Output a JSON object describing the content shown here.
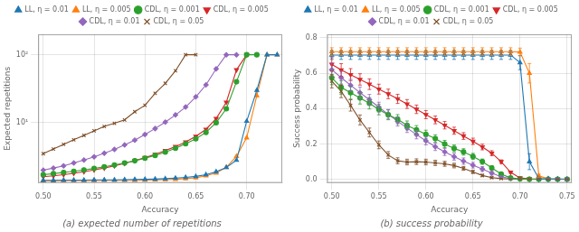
{
  "chart_data": [
    {
      "type": "line",
      "title": "(a) expected number of repetitions",
      "xlabel": "Accuracy",
      "ylabel": "Expected repetitions",
      "x": [
        0.5,
        0.51,
        0.52,
        0.53,
        0.54,
        0.55,
        0.56,
        0.57,
        0.58,
        0.59,
        0.6,
        0.61,
        0.62,
        0.63,
        0.64,
        0.65,
        0.66,
        0.67,
        0.68,
        0.69,
        0.7,
        0.71,
        0.72,
        0.73
      ],
      "series": [
        {
          "name": "LL, η = 0.01",
          "color": "#1f77b4",
          "marker": "triangle",
          "values": [
            1.42,
            1.42,
            1.43,
            1.43,
            1.43,
            1.44,
            1.44,
            1.44,
            1.45,
            1.46,
            1.47,
            1.48,
            1.5,
            1.53,
            1.57,
            1.62,
            1.72,
            1.9,
            2.2,
            2.8,
            10.5,
            30.0,
            100.0,
            100.0
          ]
        },
        {
          "name": "LL, η = 0.005",
          "color": "#ff7f0e",
          "marker": "triangle",
          "values": [
            1.4,
            1.4,
            1.41,
            1.41,
            1.41,
            1.41,
            1.42,
            1.42,
            1.42,
            1.42,
            1.43,
            1.44,
            1.45,
            1.47,
            1.5,
            1.55,
            1.65,
            1.82,
            2.2,
            3.2,
            6.0,
            25.0,
            100.0,
            100.0
          ]
        },
        {
          "name": "CDL, η = 0.001",
          "color": "#2ca02c",
          "marker": "circle",
          "values": [
            1.72,
            1.78,
            1.85,
            1.93,
            2.02,
            2.12,
            2.24,
            2.38,
            2.55,
            2.75,
            3.0,
            3.3,
            3.7,
            4.2,
            4.9,
            5.8,
            7.2,
            10.0,
            16.0,
            40.0,
            100.0,
            100.0,
            null,
            null
          ]
        },
        {
          "name": "CDL, η = 0.005",
          "color": "#d62728",
          "marker": "triangle_down",
          "values": [
            1.6,
            1.65,
            1.72,
            1.8,
            1.9,
            2.02,
            2.15,
            2.32,
            2.52,
            2.76,
            3.06,
            3.42,
            3.88,
            4.45,
            5.2,
            6.3,
            8.0,
            11.5,
            20.0,
            60.0,
            100.0,
            null,
            null,
            null
          ]
        },
        {
          "name": "CDL, η = 0.01",
          "color": "#9467bd",
          "marker": "diamond",
          "values": [
            2.0,
            2.15,
            2.32,
            2.55,
            2.82,
            3.15,
            3.55,
            4.05,
            4.7,
            5.55,
            6.7,
            8.2,
            10.2,
            13.0,
            17.0,
            24.0,
            36.0,
            62.0,
            100.0,
            100.0,
            null,
            null,
            null,
            null
          ]
        },
        {
          "name": "CDL, η = 0.05",
          "color": "#7f4f28",
          "marker": "x",
          "values": [
            3.5,
            4.1,
            4.8,
            5.6,
            6.5,
            7.6,
            8.8,
            9.8,
            11.0,
            14.5,
            18.0,
            27.0,
            38.0,
            58.0,
            100.0,
            100.0,
            null,
            null,
            null,
            null,
            null,
            null,
            null,
            null
          ]
        }
      ],
      "xlim": [
        0.495,
        0.735
      ],
      "ylim": [
        1.3,
        200
      ],
      "xticks": [
        {
          "value": 0.5,
          "label": "0.50"
        },
        0.55,
        {
          "value": 0.6,
          "label": "0.60"
        },
        0.65,
        {
          "value": 0.7,
          "label": "0.70"
        }
      ],
      "yticks": [
        {
          "value": 10,
          "label": "10¹"
        },
        {
          "value": 100,
          "label": "10²"
        }
      ],
      "log": "y",
      "grid": true,
      "legend": "top"
    },
    {
      "type": "line",
      "title": "(b) success probability",
      "xlabel": "Accuracy",
      "ylabel": "Success probability",
      "x": [
        0.5,
        0.51,
        0.52,
        0.53,
        0.54,
        0.55,
        0.56,
        0.57,
        0.58,
        0.59,
        0.6,
        0.61,
        0.62,
        0.63,
        0.64,
        0.65,
        0.66,
        0.67,
        0.68,
        0.69,
        0.7,
        0.71,
        0.72,
        0.73,
        0.74,
        0.75
      ],
      "series": [
        {
          "name": "LL, η = 0.01",
          "color": "#1f77b4",
          "marker": "triangle",
          "values": [
            0.703,
            0.703,
            0.703,
            0.703,
            0.703,
            0.703,
            0.703,
            0.703,
            0.703,
            0.703,
            0.703,
            0.703,
            0.703,
            0.703,
            0.703,
            0.703,
            0.703,
            0.703,
            0.703,
            0.703,
            0.66,
            0.1,
            0.005,
            0.003,
            0.002,
            0.001
          ],
          "errors": [
            0.025,
            0.025,
            0.025,
            0.025,
            0.025,
            0.025,
            0.025,
            0.025,
            0.025,
            0.025,
            0.025,
            0.025,
            0.025,
            0.025,
            0.025,
            0.025,
            0.025,
            0.025,
            0.025,
            0.025,
            0.04,
            0.045,
            0.003,
            0.002,
            0.001,
            0.001
          ]
        },
        {
          "name": "LL, η = 0.005",
          "color": "#ff7f0e",
          "marker": "triangle",
          "values": [
            0.722,
            0.722,
            0.722,
            0.722,
            0.722,
            0.722,
            0.722,
            0.722,
            0.722,
            0.722,
            0.722,
            0.722,
            0.722,
            0.722,
            0.722,
            0.722,
            0.722,
            0.722,
            0.722,
            0.722,
            0.72,
            0.6,
            0.02,
            0.003,
            0.002,
            0.001
          ],
          "errors": [
            0.022,
            0.022,
            0.022,
            0.022,
            0.022,
            0.022,
            0.022,
            0.022,
            0.022,
            0.022,
            0.022,
            0.022,
            0.022,
            0.022,
            0.022,
            0.022,
            0.022,
            0.022,
            0.022,
            0.022,
            0.022,
            0.055,
            0.01,
            0.002,
            0.001,
            0.001
          ]
        },
        {
          "name": "CDL, η = 0.001",
          "color": "#2ca02c",
          "marker": "circle",
          "values": [
            0.575,
            0.52,
            0.49,
            0.46,
            0.43,
            0.395,
            0.365,
            0.34,
            0.305,
            0.28,
            0.255,
            0.23,
            0.2,
            0.175,
            0.155,
            0.13,
            0.1,
            0.065,
            0.03,
            0.008,
            0.003,
            0.001,
            0.001,
            0.001,
            0.001,
            0.001
          ],
          "errors": [
            0.04,
            0.038,
            0.036,
            0.034,
            0.032,
            0.03,
            0.028,
            0.026,
            0.025,
            0.024,
            0.023,
            0.022,
            0.02,
            0.019,
            0.018,
            0.017,
            0.015,
            0.012,
            0.008,
            0.004,
            0.002,
            0.001,
            0.001,
            0.001,
            0.001,
            0.001
          ]
        },
        {
          "name": "CDL, η = 0.005",
          "color": "#d62728",
          "marker": "triangle_down",
          "values": [
            0.65,
            0.618,
            0.592,
            0.565,
            0.538,
            0.51,
            0.483,
            0.455,
            0.426,
            0.396,
            0.366,
            0.336,
            0.306,
            0.275,
            0.245,
            0.215,
            0.183,
            0.148,
            0.1,
            0.04,
            0.008,
            0.003,
            0.002,
            0.001,
            0.001,
            0.001
          ],
          "errors": [
            0.038,
            0.036,
            0.034,
            0.032,
            0.03,
            0.028,
            0.027,
            0.026,
            0.025,
            0.024,
            0.023,
            0.022,
            0.021,
            0.02,
            0.019,
            0.018,
            0.016,
            0.014,
            0.01,
            0.006,
            0.003,
            0.002,
            0.001,
            0.001,
            0.001,
            0.001
          ]
        },
        {
          "name": "CDL, η = 0.01",
          "color": "#9467bd",
          "marker": "diamond",
          "values": [
            0.62,
            0.575,
            0.532,
            0.49,
            0.45,
            0.408,
            0.368,
            0.328,
            0.29,
            0.253,
            0.218,
            0.185,
            0.155,
            0.128,
            0.103,
            0.08,
            0.058,
            0.035,
            0.015,
            0.005,
            0.002,
            0.001,
            0.001,
            0.001,
            0.001,
            0.001
          ],
          "errors": [
            0.038,
            0.036,
            0.034,
            0.032,
            0.03,
            0.028,
            0.027,
            0.026,
            0.025,
            0.024,
            0.023,
            0.022,
            0.02,
            0.019,
            0.018,
            0.016,
            0.014,
            0.01,
            0.007,
            0.003,
            0.001,
            0.001,
            0.001,
            0.001,
            0.001,
            0.001
          ]
        },
        {
          "name": "CDL, η = 0.05",
          "color": "#7f4f28",
          "marker": "x",
          "values": [
            0.555,
            0.498,
            0.418,
            0.336,
            0.265,
            0.195,
            0.138,
            0.105,
            0.098,
            0.1,
            0.098,
            0.093,
            0.088,
            0.078,
            0.062,
            0.042,
            0.022,
            0.01,
            0.004,
            0.002,
            0.001,
            0.001,
            0.001,
            0.001,
            0.001,
            0.001
          ],
          "errors": [
            0.038,
            0.036,
            0.032,
            0.028,
            0.025,
            0.022,
            0.019,
            0.017,
            0.016,
            0.016,
            0.016,
            0.015,
            0.014,
            0.013,
            0.011,
            0.009,
            0.007,
            0.004,
            0.002,
            0.001,
            0.001,
            0.001,
            0.001,
            0.001,
            0.001,
            0.001
          ]
        }
      ],
      "xlim": [
        0.495,
        0.755
      ],
      "ylim": [
        -0.02,
        0.82
      ],
      "xticks": [
        {
          "value": 0.5,
          "label": "0.50"
        },
        0.55,
        {
          "value": 0.6,
          "label": "0.60"
        },
        0.65,
        {
          "value": 0.7,
          "label": "0.70"
        },
        0.75
      ],
      "yticks": [
        {
          "value": 0.0,
          "label": "0.0"
        },
        0.2,
        0.4,
        0.6,
        0.8
      ],
      "grid": true,
      "legend": "top"
    }
  ]
}
